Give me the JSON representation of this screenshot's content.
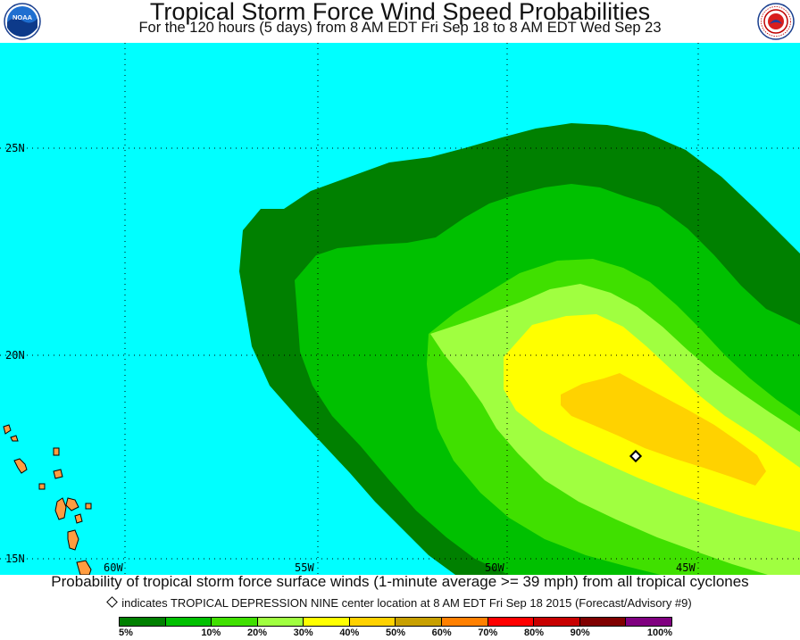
{
  "header": {
    "title": "Tropical Storm Force Wind Speed Probabilities",
    "subtitle": "For the 120 hours (5 days) from 8 AM EDT Fri Sep 18 to 8 AM EDT Wed Sep 23",
    "logo_left_text": "NOAA",
    "logo_right_text": "NATIONAL WEATHER SERVICE"
  },
  "map": {
    "lat_labels": [
      "25N",
      "20N",
      "15N"
    ],
    "lon_labels": [
      "60W",
      "55W",
      "50W",
      "45W"
    ],
    "ocean_color": "#00ffff",
    "storm_center_marker": "diamond"
  },
  "footer": {
    "caption": "Probability of tropical storm force surface winds (1-minute average >= 39 mph) from all tropical cyclones",
    "note": "indicates TROPICAL DEPRESSION NINE center location at 8 AM EDT Fri Sep 18 2015 (Forecast/Advisory #9)"
  },
  "legend": {
    "colors": [
      "#008000",
      "#00c000",
      "#40e000",
      "#a0ff40",
      "#ffff00",
      "#ffd200",
      "#c8a000",
      "#ff8000",
      "#ff0000",
      "#c80000",
      "#800000",
      "#800080"
    ],
    "labels": [
      "5%",
      "10%",
      "20%",
      "30%",
      "40%",
      "50%",
      "60%",
      "70%",
      "80%",
      "90%",
      "100%"
    ]
  }
}
